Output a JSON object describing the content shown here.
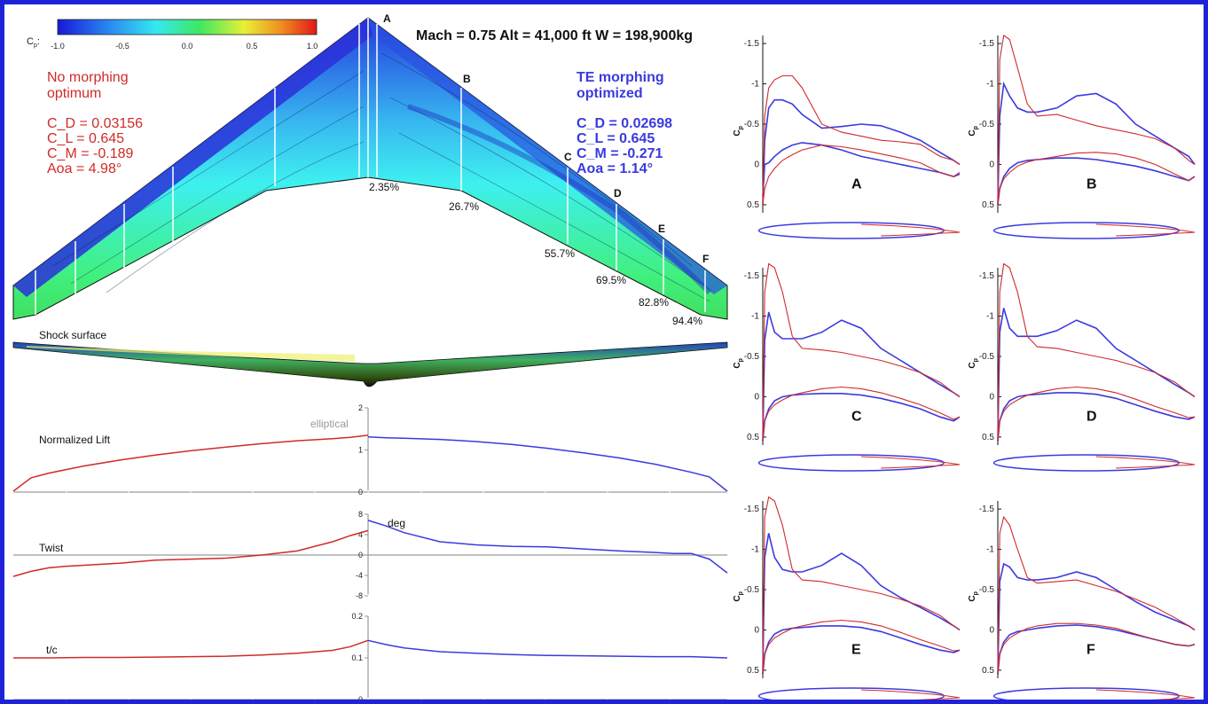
{
  "colors": {
    "frame": "#1f22d8",
    "morph": "#3a3ae0",
    "nomorph": "#d02a2a",
    "axis": "#9a9a9a"
  },
  "header": {
    "conditions": "Mach = 0.75 Alt = 41,000 ft W = 198,900kg"
  },
  "colorbar": {
    "label": "C",
    "label_sub": "p",
    "label_suffix": ":",
    "ticks": [
      "-1.0",
      "-0.5",
      "0.0",
      "0.5",
      "1.0"
    ]
  },
  "legend_left": {
    "title1": "No morphing",
    "title2": "optimum",
    "cd": "C_D = 0.03156",
    "cl": "C_L = 0.645",
    "cm": "C_M = -0.189",
    "aoa": "Aoa = 4.98°"
  },
  "legend_right": {
    "title1": "TE morphing",
    "title2": "optimized",
    "cd": "C_D = 0.02698",
    "cl": "C_L = 0.645",
    "cm": "C_M = -0.271",
    "aoa": "Aoa = 1.14°"
  },
  "stations": [
    {
      "letter": "A",
      "pct": "2.35%"
    },
    {
      "letter": "B",
      "pct": "26.7%"
    },
    {
      "letter": "C",
      "pct": "55.7%"
    },
    {
      "letter": "D",
      "pct": "69.5%"
    },
    {
      "letter": "E",
      "pct": "82.8%"
    },
    {
      "letter": "F",
      "pct": "94.4%"
    }
  ],
  "shock_label": "Shock surface",
  "chart_data": [
    {
      "type": "line",
      "title": "Normalized Lift",
      "annotation": "elliptical",
      "ylim": [
        0,
        2
      ],
      "yticks": [
        "0",
        "1",
        "2"
      ],
      "x": [
        0.0,
        0.05,
        0.1,
        0.2,
        0.3,
        0.4,
        0.5,
        0.6,
        0.7,
        0.8,
        0.9,
        0.95,
        1.0
      ],
      "series": [
        {
          "values": [
            1.31,
            1.29,
            1.28,
            1.25,
            1.2,
            1.13,
            1.04,
            0.93,
            0.81,
            0.66,
            0.47,
            0.36,
            0.02
          ]
        },
        {
          "values": [
            1.35,
            1.3,
            1.27,
            1.22,
            1.15,
            1.07,
            0.98,
            0.88,
            0.76,
            0.62,
            0.45,
            0.34,
            0.02
          ]
        }
      ]
    },
    {
      "type": "line",
      "title": "Twist",
      "unit_label": "deg",
      "ylim": [
        -8,
        8
      ],
      "yticks": [
        "8",
        "4",
        "0",
        "-4",
        "-8"
      ],
      "x": [
        0.0,
        0.05,
        0.1,
        0.2,
        0.3,
        0.4,
        0.5,
        0.6,
        0.7,
        0.8,
        0.85,
        0.9,
        0.95,
        1.0
      ],
      "series": [
        {
          "values": [
            6.8,
            5.7,
            4.4,
            2.6,
            2.0,
            1.7,
            1.6,
            1.2,
            0.8,
            0.5,
            0.3,
            0.3,
            -0.8,
            -3.5
          ]
        },
        {
          "values": [
            4.8,
            3.8,
            2.6,
            0.8,
            0.0,
            -0.6,
            -0.8,
            -1.0,
            -1.6,
            -2.0,
            -2.2,
            -2.5,
            -3.2,
            -4.2
          ]
        }
      ]
    },
    {
      "type": "line",
      "title": "t/c",
      "ylim": [
        0,
        0.2
      ],
      "yticks": [
        "0.2",
        "0.1",
        "0"
      ],
      "x": [
        0.0,
        0.05,
        0.1,
        0.2,
        0.3,
        0.4,
        0.5,
        0.6,
        0.7,
        0.8,
        0.9,
        1.0
      ],
      "series": [
        {
          "values": [
            0.142,
            0.132,
            0.124,
            0.115,
            0.111,
            0.108,
            0.106,
            0.105,
            0.104,
            0.103,
            0.103,
            0.1
          ]
        },
        {
          "values": [
            0.142,
            0.127,
            0.118,
            0.111,
            0.107,
            0.104,
            0.103,
            0.102,
            0.101,
            0.101,
            0.1,
            0.1
          ]
        }
      ]
    },
    {
      "type": "line",
      "panel": "A",
      "ylabel": "C",
      "ylabel_sub": "p",
      "ylim": [
        0.6,
        -1.6
      ],
      "yticks": [
        "-1.5",
        "-1",
        "-0.5",
        "0",
        "0.5"
      ],
      "x": [
        0.0,
        0.01,
        0.03,
        0.06,
        0.1,
        0.15,
        0.2,
        0.3,
        0.4,
        0.5,
        0.6,
        0.7,
        0.8,
        0.9,
        0.97,
        1.0
      ],
      "series": [
        {
          "values": [
            0.5,
            -0.3,
            -0.7,
            -0.8,
            -0.8,
            -0.75,
            -0.62,
            -0.45,
            -0.47,
            -0.5,
            -0.48,
            -0.4,
            -0.3,
            -0.15,
            -0.05,
            0.0
          ]
        },
        {
          "values": [
            0.4,
            0.0,
            -0.02,
            -0.1,
            -0.18,
            -0.24,
            -0.27,
            -0.24,
            -0.18,
            -0.1,
            -0.05,
            0.0,
            0.05,
            0.1,
            0.15,
            0.12
          ]
        },
        {
          "values": [
            0.5,
            -0.6,
            -0.95,
            -1.05,
            -1.1,
            -1.1,
            -0.95,
            -0.5,
            -0.4,
            -0.35,
            -0.3,
            -0.28,
            -0.25,
            -0.1,
            -0.05,
            0.0
          ]
        },
        {
          "values": [
            0.5,
            0.3,
            0.15,
            0.05,
            -0.05,
            -0.12,
            -0.18,
            -0.24,
            -0.22,
            -0.18,
            -0.13,
            -0.08,
            -0.02,
            0.1,
            0.15,
            0.1
          ]
        }
      ]
    },
    {
      "type": "line",
      "panel": "B",
      "ylabel": "C",
      "ylabel_sub": "p",
      "ylim": [
        0.6,
        -1.6
      ],
      "yticks": [
        "-1.5",
        "-1",
        "-0.5",
        "0",
        "0.5"
      ],
      "x": [
        0.0,
        0.01,
        0.03,
        0.06,
        0.1,
        0.15,
        0.2,
        0.3,
        0.4,
        0.5,
        0.6,
        0.7,
        0.8,
        0.9,
        0.97,
        1.0
      ],
      "series": [
        {
          "values": [
            0.5,
            -0.6,
            -1.0,
            -0.85,
            -0.7,
            -0.65,
            -0.65,
            -0.7,
            -0.85,
            -0.88,
            -0.75,
            -0.5,
            -0.35,
            -0.2,
            -0.1,
            0.0
          ]
        },
        {
          "values": [
            0.5,
            0.3,
            0.15,
            0.05,
            -0.02,
            -0.05,
            -0.06,
            -0.08,
            -0.08,
            -0.06,
            -0.02,
            0.02,
            0.08,
            0.15,
            0.2,
            0.15
          ]
        },
        {
          "values": [
            0.5,
            -1.3,
            -1.6,
            -1.55,
            -1.2,
            -0.75,
            -0.6,
            -0.62,
            -0.55,
            -0.48,
            -0.43,
            -0.38,
            -0.32,
            -0.2,
            -0.05,
            0.0
          ]
        },
        {
          "values": [
            0.5,
            0.3,
            0.18,
            0.1,
            0.02,
            -0.03,
            -0.06,
            -0.1,
            -0.14,
            -0.15,
            -0.13,
            -0.08,
            0.0,
            0.12,
            0.2,
            0.15
          ]
        }
      ]
    },
    {
      "type": "line",
      "panel": "C",
      "ylabel": "C",
      "ylabel_sub": "p",
      "ylim": [
        0.6,
        -1.6
      ],
      "yticks": [
        "-1.5",
        "-1",
        "-0.5",
        "0",
        "0.5"
      ],
      "x": [
        0.0,
        0.01,
        0.03,
        0.06,
        0.1,
        0.15,
        0.2,
        0.3,
        0.4,
        0.5,
        0.6,
        0.7,
        0.8,
        0.9,
        0.97,
        1.0
      ],
      "series": [
        {
          "values": [
            0.55,
            -0.7,
            -1.05,
            -0.8,
            -0.72,
            -0.72,
            -0.72,
            -0.8,
            -0.95,
            -0.85,
            -0.6,
            -0.45,
            -0.3,
            -0.15,
            -0.05,
            0.0
          ]
        },
        {
          "values": [
            0.55,
            0.3,
            0.15,
            0.05,
            0.0,
            -0.02,
            -0.03,
            -0.04,
            -0.04,
            -0.02,
            0.02,
            0.08,
            0.15,
            0.25,
            0.3,
            0.25
          ]
        },
        {
          "values": [
            0.55,
            -1.3,
            -1.65,
            -1.6,
            -1.3,
            -0.75,
            -0.6,
            -0.58,
            -0.55,
            -0.5,
            -0.45,
            -0.38,
            -0.3,
            -0.18,
            -0.05,
            0.0
          ]
        },
        {
          "values": [
            0.55,
            0.3,
            0.18,
            0.1,
            0.04,
            -0.02,
            -0.05,
            -0.1,
            -0.12,
            -0.1,
            -0.05,
            0.02,
            0.1,
            0.2,
            0.28,
            0.25
          ]
        }
      ]
    },
    {
      "type": "line",
      "panel": "D",
      "ylabel": "C",
      "ylabel_sub": "p",
      "ylim": [
        0.6,
        -1.6
      ],
      "yticks": [
        "-1.5",
        "-1",
        "-0.5",
        "0",
        "0.5"
      ],
      "x": [
        0.0,
        0.01,
        0.03,
        0.06,
        0.1,
        0.15,
        0.2,
        0.3,
        0.4,
        0.5,
        0.6,
        0.7,
        0.8,
        0.9,
        0.97,
        1.0
      ],
      "series": [
        {
          "values": [
            0.55,
            -0.8,
            -1.1,
            -0.85,
            -0.75,
            -0.75,
            -0.75,
            -0.82,
            -0.95,
            -0.85,
            -0.6,
            -0.45,
            -0.3,
            -0.15,
            -0.05,
            0.0
          ]
        },
        {
          "values": [
            0.55,
            0.3,
            0.15,
            0.05,
            0.0,
            -0.02,
            -0.03,
            -0.05,
            -0.05,
            -0.03,
            0.02,
            0.1,
            0.18,
            0.25,
            0.28,
            0.25
          ]
        },
        {
          "values": [
            0.55,
            -1.3,
            -1.65,
            -1.6,
            -1.3,
            -0.75,
            -0.62,
            -0.6,
            -0.55,
            -0.5,
            -0.45,
            -0.38,
            -0.3,
            -0.18,
            -0.05,
            0.0
          ]
        },
        {
          "values": [
            0.55,
            0.3,
            0.18,
            0.1,
            0.04,
            -0.02,
            -0.05,
            -0.1,
            -0.12,
            -0.1,
            -0.05,
            0.03,
            0.12,
            0.2,
            0.26,
            0.25
          ]
        }
      ]
    },
    {
      "type": "line",
      "panel": "E",
      "ylabel": "C",
      "ylabel_sub": "p",
      "ylim": [
        0.6,
        -1.6
      ],
      "yticks": [
        "-1.5",
        "-1",
        "-0.5",
        "0",
        "0.5"
      ],
      "x": [
        0.0,
        0.01,
        0.03,
        0.06,
        0.1,
        0.15,
        0.2,
        0.3,
        0.4,
        0.5,
        0.6,
        0.7,
        0.8,
        0.9,
        0.97,
        1.0
      ],
      "series": [
        {
          "values": [
            0.55,
            -0.9,
            -1.2,
            -0.9,
            -0.75,
            -0.72,
            -0.72,
            -0.8,
            -0.95,
            -0.8,
            -0.55,
            -0.4,
            -0.28,
            -0.15,
            -0.05,
            0.0
          ]
        },
        {
          "values": [
            0.55,
            0.3,
            0.15,
            0.05,
            0.0,
            -0.02,
            -0.03,
            -0.05,
            -0.05,
            -0.03,
            0.02,
            0.1,
            0.18,
            0.25,
            0.28,
            0.25
          ]
        },
        {
          "values": [
            0.55,
            -1.4,
            -1.65,
            -1.6,
            -1.3,
            -0.75,
            -0.62,
            -0.6,
            -0.55,
            -0.5,
            -0.45,
            -0.38,
            -0.3,
            -0.18,
            -0.05,
            0.0
          ]
        },
        {
          "values": [
            0.55,
            0.3,
            0.18,
            0.1,
            0.04,
            -0.02,
            -0.05,
            -0.1,
            -0.12,
            -0.1,
            -0.05,
            0.03,
            0.12,
            0.2,
            0.26,
            0.25
          ]
        }
      ]
    },
    {
      "type": "line",
      "panel": "F",
      "ylabel": "C",
      "ylabel_sub": "p",
      "ylim": [
        0.6,
        -1.6
      ],
      "yticks": [
        "-1.5",
        "-1",
        "-0.5",
        "0",
        "0.5"
      ],
      "x": [
        0.0,
        0.01,
        0.03,
        0.06,
        0.1,
        0.15,
        0.2,
        0.3,
        0.4,
        0.5,
        0.6,
        0.7,
        0.8,
        0.9,
        0.97,
        1.0
      ],
      "series": [
        {
          "values": [
            0.55,
            -0.6,
            -0.82,
            -0.78,
            -0.65,
            -0.62,
            -0.62,
            -0.65,
            -0.72,
            -0.65,
            -0.5,
            -0.35,
            -0.22,
            -0.12,
            -0.05,
            0.0
          ]
        },
        {
          "values": [
            0.55,
            0.3,
            0.15,
            0.06,
            0.02,
            0.0,
            -0.02,
            -0.05,
            -0.06,
            -0.04,
            0.0,
            0.06,
            0.12,
            0.18,
            0.2,
            0.18
          ]
        },
        {
          "values": [
            0.55,
            -1.2,
            -1.4,
            -1.3,
            -1.0,
            -0.65,
            -0.58,
            -0.6,
            -0.62,
            -0.55,
            -0.48,
            -0.38,
            -0.28,
            -0.15,
            -0.05,
            0.0
          ]
        },
        {
          "values": [
            0.55,
            0.3,
            0.18,
            0.1,
            0.04,
            -0.02,
            -0.05,
            -0.08,
            -0.08,
            -0.06,
            -0.02,
            0.05,
            0.12,
            0.18,
            0.2,
            0.18
          ]
        }
      ]
    }
  ]
}
